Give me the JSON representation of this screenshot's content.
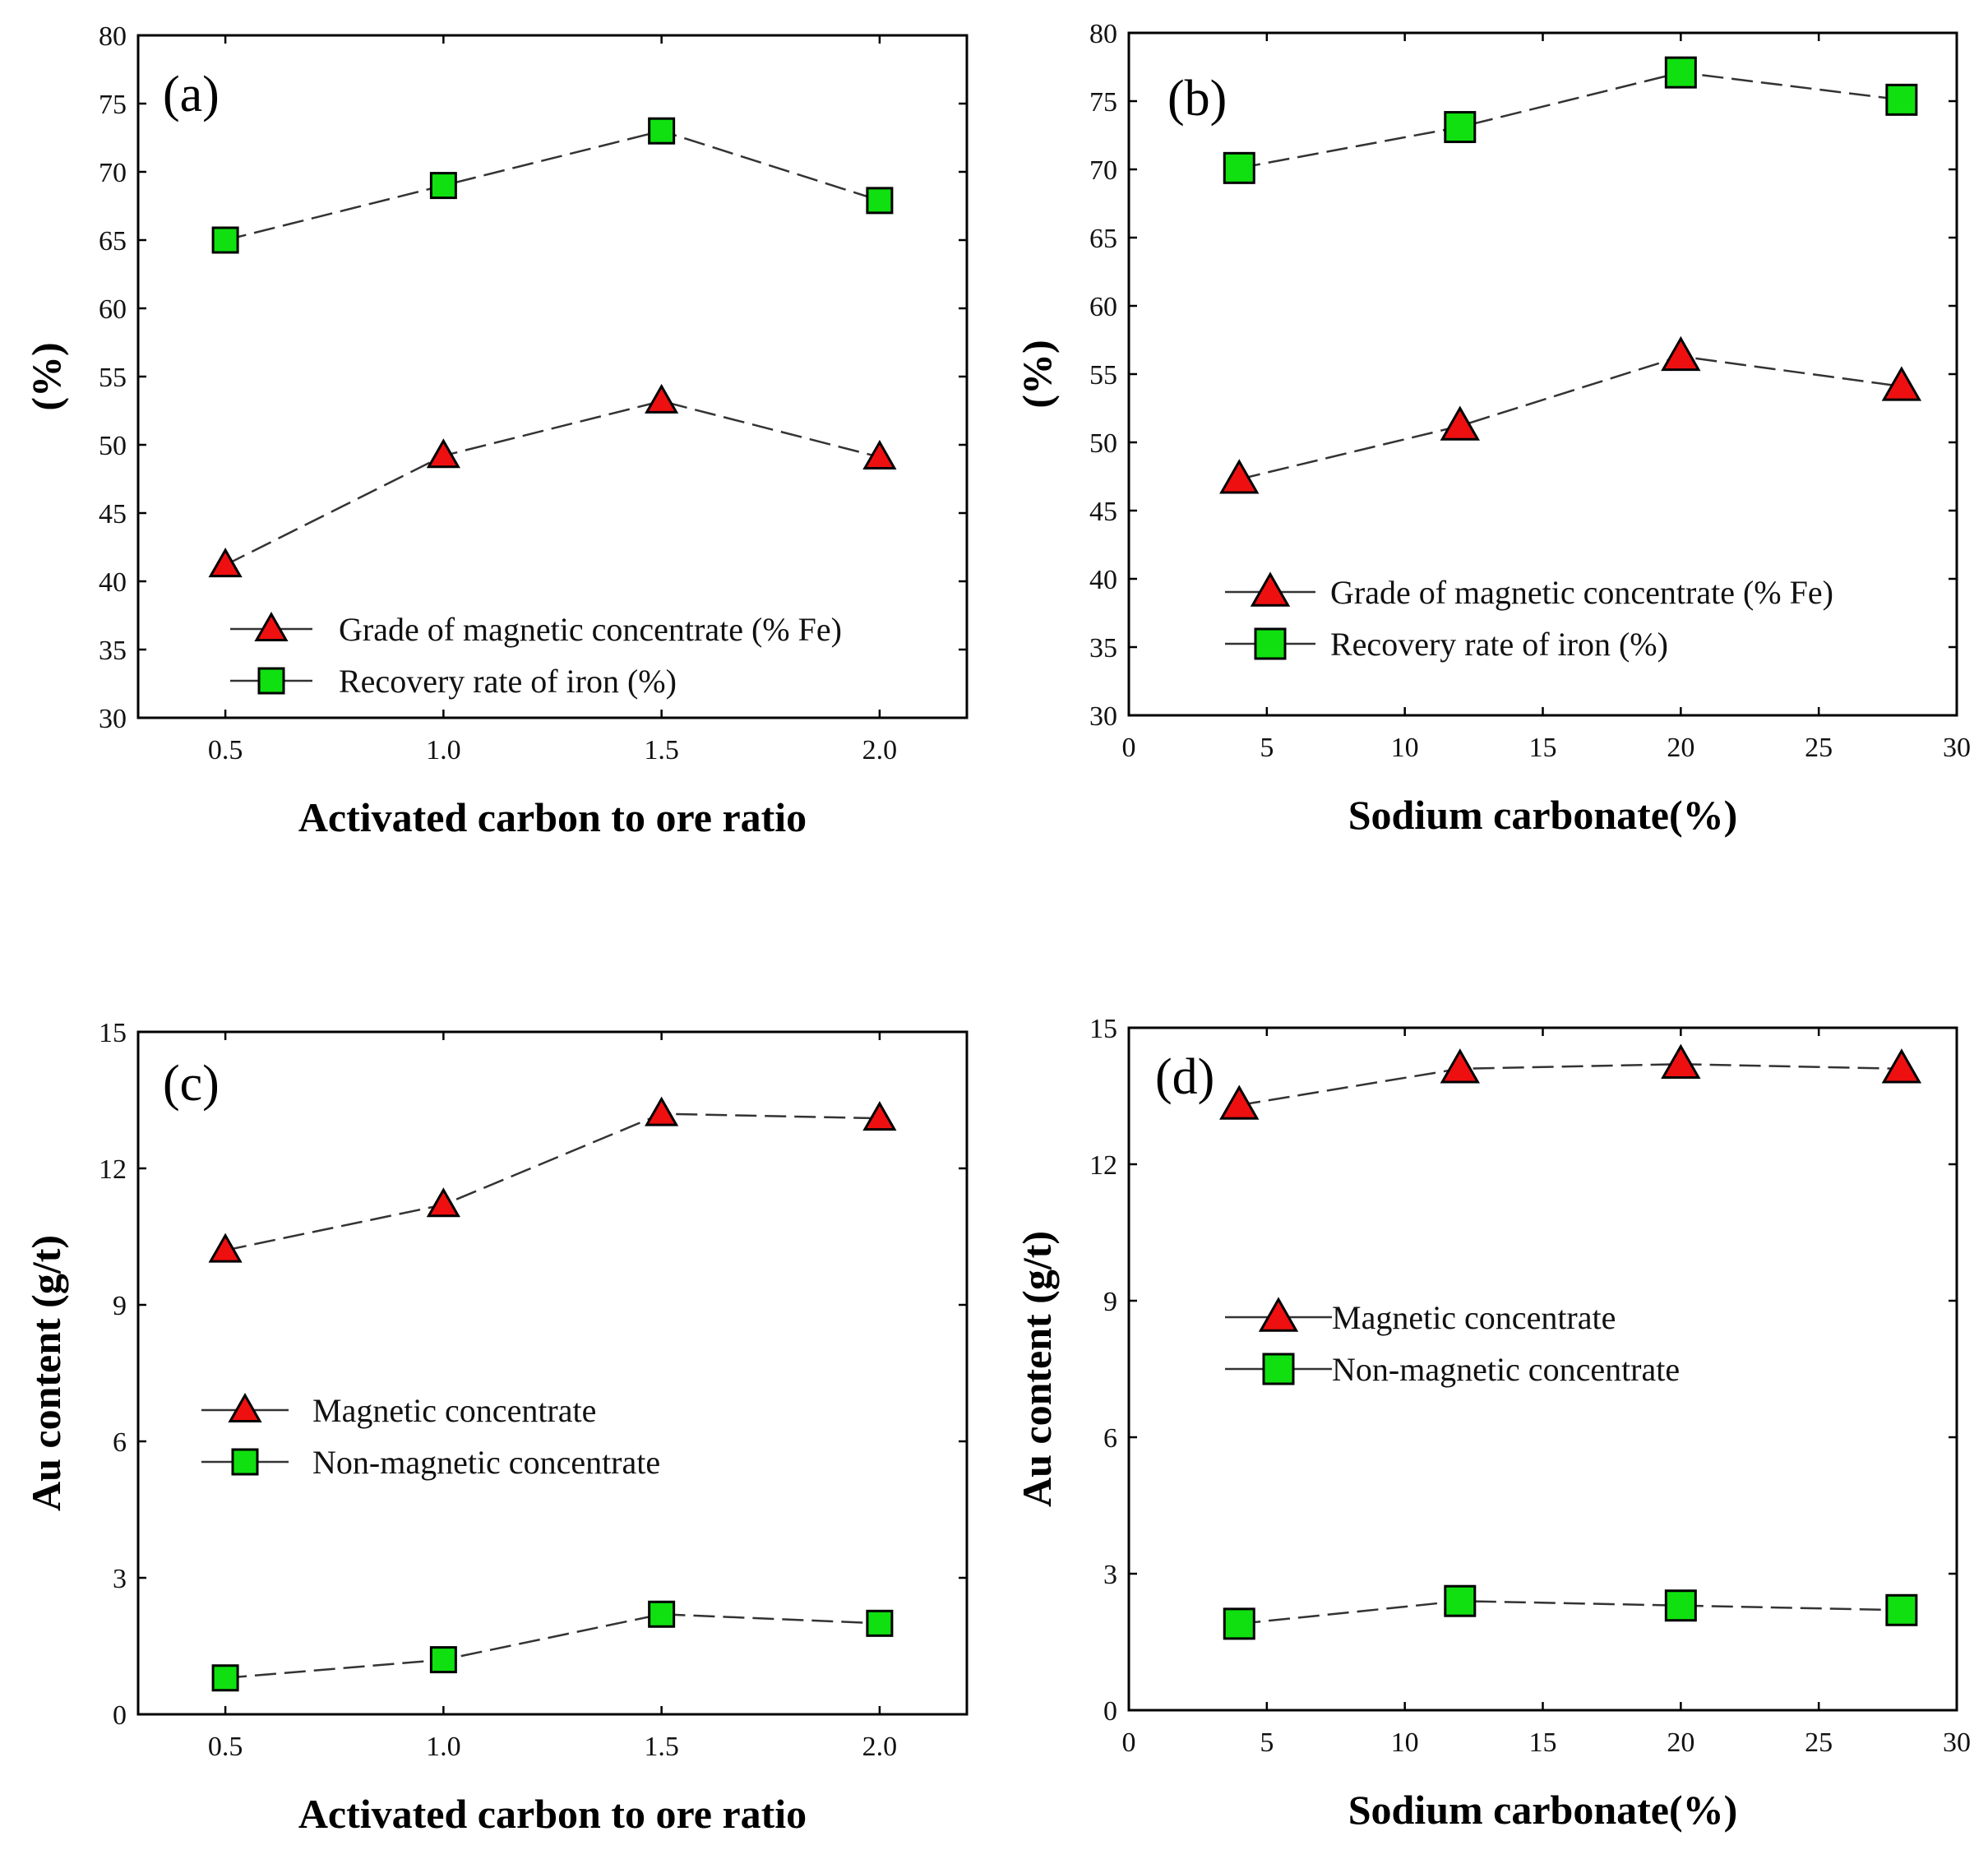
{
  "chart_data": [
    {
      "type": "line",
      "panel_label": "(a)",
      "xlabel": "Activated carbon to ore ratio",
      "ylabel": "(%)",
      "xlim": [
        0.3,
        2.2
      ],
      "ylim": [
        30,
        80
      ],
      "xticks": [
        0.5,
        1.0,
        1.5,
        2.0
      ],
      "xtick_labels": [
        "0.5",
        "1.0",
        "1.5",
        "2.0"
      ],
      "yticks": [
        30,
        35,
        40,
        45,
        50,
        55,
        60,
        65,
        70,
        75,
        80
      ],
      "ytick_labels": [
        "30",
        "35",
        "40",
        "45",
        "50",
        "55",
        "60",
        "65",
        "70",
        "75",
        "80"
      ],
      "x": [
        0.5,
        1.0,
        1.5,
        2.0
      ],
      "legend_position": "lower-left",
      "series": [
        {
          "name": "Grade of magnetic concentrate (% Fe)",
          "marker": "triangle",
          "values": [
            41.2,
            49.2,
            53.2,
            49.1
          ]
        },
        {
          "name": "Recovery rate of iron (%)",
          "marker": "square",
          "values": [
            65,
            69,
            73,
            67.9
          ]
        }
      ]
    },
    {
      "type": "line",
      "panel_label": "(b)",
      "xlabel": "Sodium carbonate(%)",
      "ylabel": "(%)",
      "xlim": [
        0,
        30
      ],
      "ylim": [
        30,
        80
      ],
      "xticks": [
        0,
        5,
        10,
        15,
        20,
        25,
        30
      ],
      "xtick_labels": [
        "0",
        "5",
        "10",
        "15",
        "20",
        "25",
        "30"
      ],
      "yticks": [
        30,
        35,
        40,
        45,
        50,
        55,
        60,
        65,
        70,
        75,
        80
      ],
      "ytick_labels": [
        "30",
        "35",
        "40",
        "45",
        "50",
        "55",
        "60",
        "65",
        "70",
        "75",
        "80"
      ],
      "x": [
        4,
        12,
        20,
        28
      ],
      "legend_position": "lower-left",
      "series": [
        {
          "name": "Grade of magnetic concentrate (% Fe)",
          "marker": "triangle",
          "values": [
            47.3,
            51.2,
            56.3,
            54.1
          ]
        },
        {
          "name": "Recovery rate of iron (%)",
          "marker": "square",
          "values": [
            70.1,
            73.1,
            77.1,
            75.1
          ]
        }
      ]
    },
    {
      "type": "line",
      "panel_label": "(c)",
      "xlabel": "Activated carbon to ore ratio",
      "ylabel": "Au content (g/t)",
      "xlim": [
        0.3,
        2.2
      ],
      "ylim": [
        0,
        15
      ],
      "xticks": [
        0.5,
        1.0,
        1.5,
        2.0
      ],
      "xtick_labels": [
        "0.5",
        "1.0",
        "1.5",
        "2.0"
      ],
      "yticks": [
        0,
        3,
        6,
        9,
        12,
        15
      ],
      "ytick_labels": [
        "0",
        "3",
        "6",
        "9",
        "12",
        "15"
      ],
      "x": [
        0.5,
        1.0,
        1.5,
        2.0
      ],
      "legend_position": "middle-left",
      "series": [
        {
          "name": "Magnetic concentrate",
          "marker": "triangle",
          "values": [
            10.2,
            11.2,
            13.2,
            13.1
          ]
        },
        {
          "name": "Non-magnetic concentrate",
          "marker": "square",
          "values": [
            0.8,
            1.2,
            2.2,
            2.0
          ]
        }
      ]
    },
    {
      "type": "line",
      "panel_label": "(d)",
      "xlabel": "Sodium carbonate(%)",
      "ylabel": "Au content (g/t)",
      "xlim": [
        0,
        30
      ],
      "ylim": [
        0,
        15
      ],
      "xticks": [
        0,
        5,
        10,
        15,
        20,
        25,
        30
      ],
      "xtick_labels": [
        "0",
        "5",
        "10",
        "15",
        "20",
        "25",
        "30"
      ],
      "yticks": [
        0,
        3,
        6,
        9,
        12,
        15
      ],
      "ytick_labels": [
        "0",
        "3",
        "6",
        "9",
        "12",
        "15"
      ],
      "x": [
        4,
        12,
        20,
        28
      ],
      "legend_position": "middle-left",
      "series": [
        {
          "name": "Magnetic concentrate",
          "marker": "triangle",
          "values": [
            13.3,
            14.1,
            14.2,
            14.1
          ]
        },
        {
          "name": "Non-magnetic concentrate",
          "marker": "square",
          "values": [
            1.9,
            2.4,
            2.3,
            2.2
          ]
        }
      ]
    }
  ]
}
